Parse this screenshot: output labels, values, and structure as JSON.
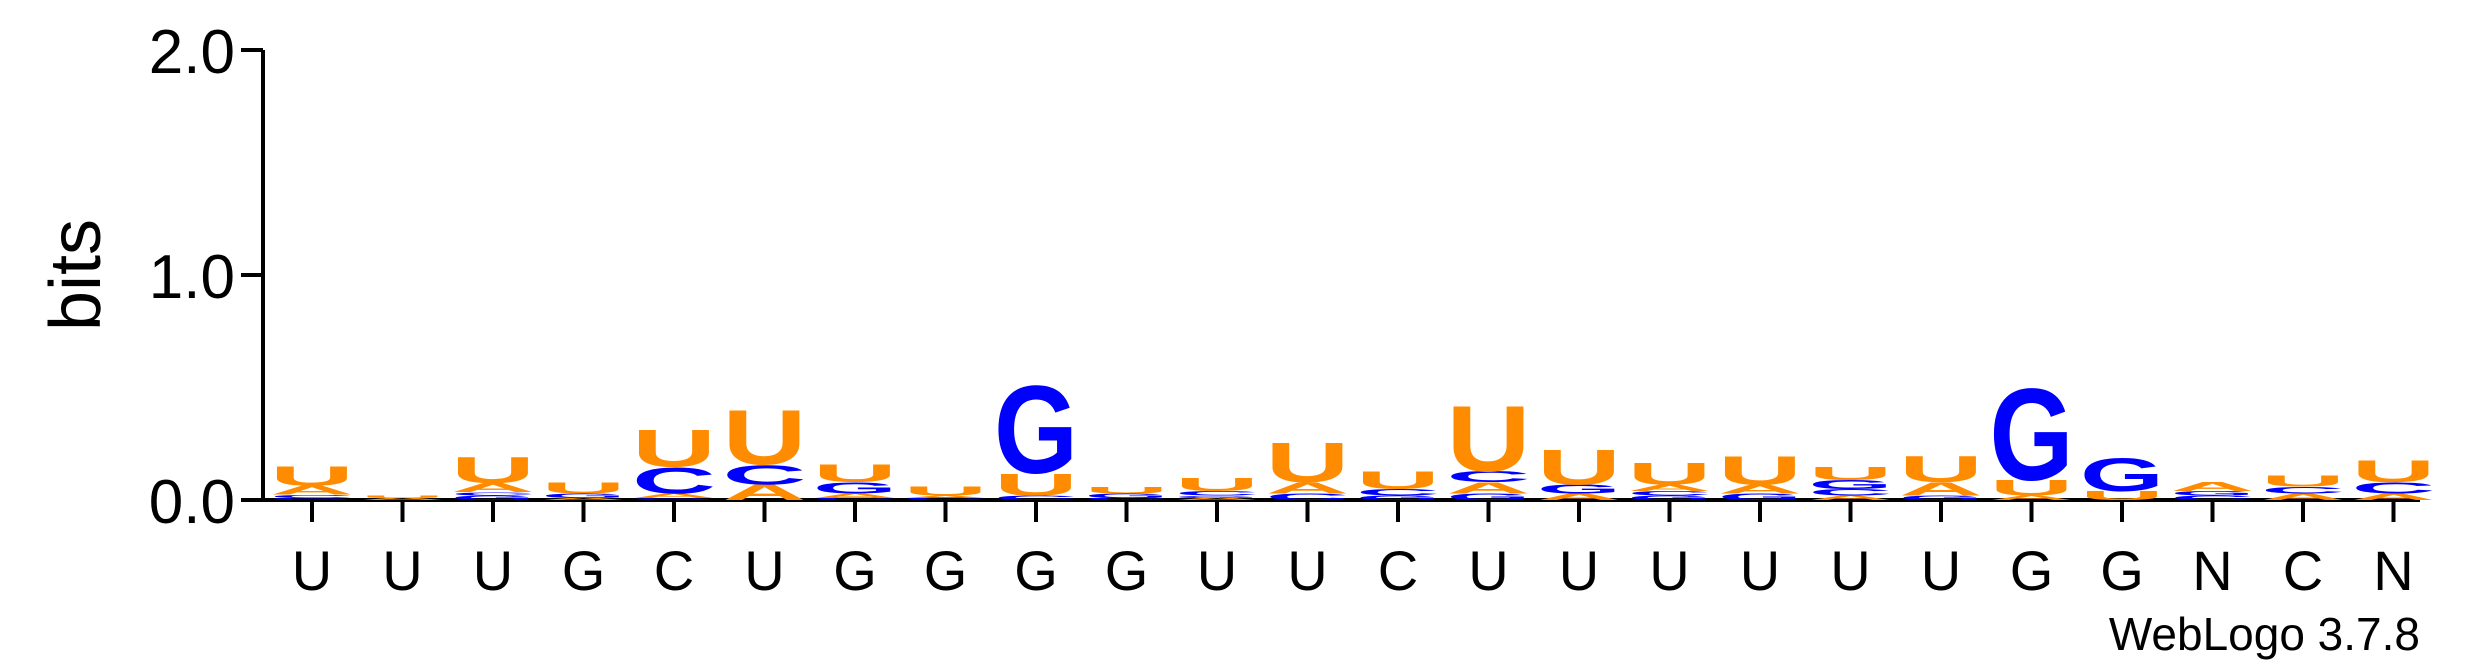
{
  "chart_data": {
    "type": "sequence-logo",
    "ylabel": "bits",
    "ylim": [
      0,
      2.0
    ],
    "yticks": [
      "0.0",
      "1.0",
      "2.0"
    ],
    "ytick_values": [
      0,
      1.0,
      2.0
    ],
    "grid": false,
    "footer": "WebLogo 3.7.8",
    "colors": {
      "U": "#ff8c00",
      "A": "#ff8c00",
      "G": "#0000ff",
      "C": "#0000ff",
      "axis": "#000000"
    },
    "categories": [
      "U",
      "U",
      "U",
      "G",
      "C",
      "U",
      "G",
      "G",
      "G",
      "G",
      "U",
      "U",
      "C",
      "U",
      "U",
      "U",
      "U",
      "U",
      "U",
      "G",
      "G",
      "N",
      "C",
      "N"
    ],
    "stacks": [
      [
        {
          "l": "G",
          "v": 0.01
        },
        {
          "l": "C",
          "v": 0.015
        },
        {
          "l": "A",
          "v": 0.04
        },
        {
          "l": "U",
          "v": 0.09
        }
      ],
      [
        {
          "l": "A",
          "v": 0.01
        },
        {
          "l": "U",
          "v": 0.01
        }
      ],
      [
        {
          "l": "G",
          "v": 0.02
        },
        {
          "l": "C",
          "v": 0.015
        },
        {
          "l": "A",
          "v": 0.04
        },
        {
          "l": "U",
          "v": 0.12
        }
      ],
      [
        {
          "l": "A",
          "v": 0.01
        },
        {
          "l": "G",
          "v": 0.02
        },
        {
          "l": "U",
          "v": 0.05
        }
      ],
      [
        {
          "l": "G",
          "v": 0.01
        },
        {
          "l": "A",
          "v": 0.02
        },
        {
          "l": "C",
          "v": 0.12
        },
        {
          "l": "U",
          "v": 0.17
        }
      ],
      [
        {
          "l": "A",
          "v": 0.07
        },
        {
          "l": "C",
          "v": 0.09
        },
        {
          "l": "U",
          "v": 0.25
        }
      ],
      [
        {
          "l": "C",
          "v": 0.01
        },
        {
          "l": "A",
          "v": 0.02
        },
        {
          "l": "G",
          "v": 0.05
        },
        {
          "l": "U",
          "v": 0.08
        }
      ],
      [
        {
          "l": "C",
          "v": 0.01
        },
        {
          "l": "A",
          "v": 0.01
        },
        {
          "l": "U",
          "v": 0.04
        }
      ],
      [
        {
          "l": "C",
          "v": 0.02
        },
        {
          "l": "U",
          "v": 0.1
        },
        {
          "l": "G",
          "v": 0.4
        }
      ],
      [
        {
          "l": "C",
          "v": 0.01
        },
        {
          "l": "G",
          "v": 0.02
        },
        {
          "l": "U",
          "v": 0.03
        }
      ],
      [
        {
          "l": "A",
          "v": 0.01
        },
        {
          "l": "G",
          "v": 0.01
        },
        {
          "l": "C",
          "v": 0.02
        },
        {
          "l": "U",
          "v": 0.06
        }
      ],
      [
        {
          "l": "C",
          "v": 0.03
        },
        {
          "l": "A",
          "v": 0.05
        },
        {
          "l": "U",
          "v": 0.18
        }
      ],
      [
        {
          "l": "G",
          "v": 0.02
        },
        {
          "l": "C",
          "v": 0.03
        },
        {
          "l": "U",
          "v": 0.08
        }
      ],
      [
        {
          "l": "G",
          "v": 0.03
        },
        {
          "l": "A",
          "v": 0.05
        },
        {
          "l": "C",
          "v": 0.05
        },
        {
          "l": "U",
          "v": 0.3
        }
      ],
      [
        {
          "l": "A",
          "v": 0.03
        },
        {
          "l": "G",
          "v": 0.04
        },
        {
          "l": "U",
          "v": 0.16
        }
      ],
      [
        {
          "l": "G",
          "v": 0.02
        },
        {
          "l": "C",
          "v": 0.02
        },
        {
          "l": "A",
          "v": 0.03
        },
        {
          "l": "U",
          "v": 0.1
        }
      ],
      [
        {
          "l": "G",
          "v": 0.03
        },
        {
          "l": "A",
          "v": 0.04
        },
        {
          "l": "U",
          "v": 0.13
        }
      ],
      [
        {
          "l": "A",
          "v": 0.02
        },
        {
          "l": "C",
          "v": 0.03
        },
        {
          "l": "G",
          "v": 0.04
        },
        {
          "l": "U",
          "v": 0.06
        }
      ],
      [
        {
          "l": "G",
          "v": 0.02
        },
        {
          "l": "A",
          "v": 0.06
        },
        {
          "l": "U",
          "v": 0.12
        }
      ],
      [
        {
          "l": "A",
          "v": 0.02
        },
        {
          "l": "U",
          "v": 0.07
        },
        {
          "l": "G",
          "v": 0.42
        }
      ],
      [
        {
          "l": "U",
          "v": 0.04
        },
        {
          "l": "G",
          "v": 0.15
        }
      ],
      [
        {
          "l": "C",
          "v": 0.02
        },
        {
          "l": "G",
          "v": 0.02
        },
        {
          "l": "A",
          "v": 0.04
        }
      ],
      [
        {
          "l": "A",
          "v": 0.03
        },
        {
          "l": "C",
          "v": 0.03
        },
        {
          "l": "U",
          "v": 0.05
        }
      ],
      [
        {
          "l": "A",
          "v": 0.03
        },
        {
          "l": "C",
          "v": 0.05
        },
        {
          "l": "U",
          "v": 0.1
        }
      ]
    ]
  }
}
